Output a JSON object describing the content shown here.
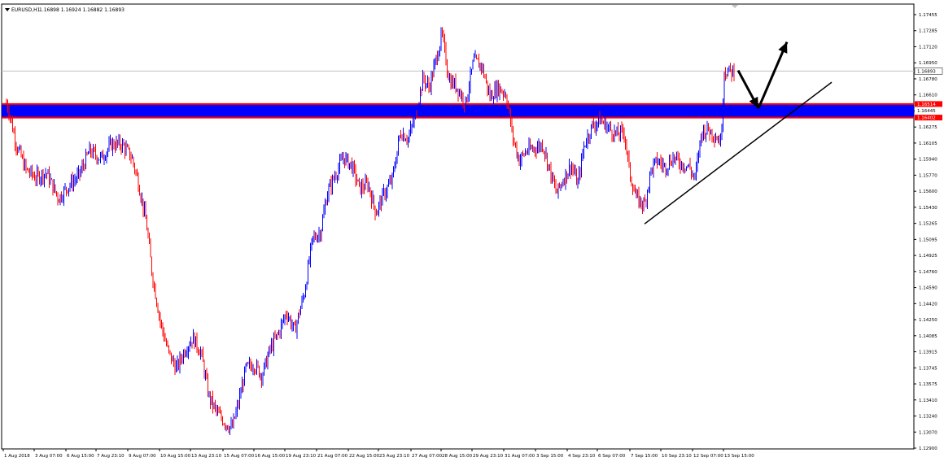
{
  "header": {
    "symbol": "EURUSD,H1",
    "ohlc": "1.16898 1.16924 1.16882 1.16893"
  },
  "colors": {
    "bull": "#0000ff",
    "bear": "#ff0000",
    "zone_fill": "#0000ff",
    "zone_border": "#ff0000",
    "annotation": "#000000",
    "price_tag_bg": "#ffffff",
    "level_tag_bg": "#ff0000"
  },
  "chart_data": {
    "type": "candlestick",
    "ylim": [
      1.12905,
      1.176
    ],
    "y_ticks": [
      "1.17455",
      "1.17285",
      "1.17120",
      "1.16950",
      "1.16780",
      "1.16610",
      "1.16445",
      "1.16275",
      "1.16105",
      "1.15940",
      "1.15770",
      "1.15600",
      "1.15430",
      "1.15265",
      "1.15095",
      "1.14925",
      "1.14760",
      "1.14590",
      "1.14420",
      "1.14250",
      "1.14085",
      "1.13915",
      "1.13745",
      "1.13575",
      "1.13410",
      "1.13240",
      "1.13070",
      "1.12900"
    ],
    "x_ticks": [
      "1 Aug 2018",
      "3 Aug 07:00",
      "6 Aug 15:00",
      "7 Aug 23:10",
      "9 Aug 07:00",
      "10 Aug 15:00",
      "13 Aug 23:10",
      "15 Aug 07:00",
      "16 Aug 15:00",
      "19 Aug 23:10",
      "21 Aug 07:00",
      "22 Aug 15:00",
      "23 Aug 23:10",
      "27 Aug 07:00",
      "28 Aug 15:00",
      "29 Aug 23:10",
      "31 Aug 07:00",
      "3 Sep 15:00",
      "4 Sep 23:10",
      "6 Sep 07:00",
      "7 Sep 15:00",
      "10 Sep 23:10",
      "12 Sep 07:00",
      "13 Sep 15:00"
    ],
    "current_price": "1.16893",
    "current_price_value": 1.16893,
    "zone": {
      "top": 1.16545,
      "bottom": 1.16402
    },
    "zone_labels": [
      "1.16514",
      "1.16445",
      "1.16402"
    ],
    "price_path": [
      {
        "x": 0,
        "y": 1.1672
      },
      {
        "x": 8,
        "y": 1.1651
      },
      {
        "x": 18,
        "y": 1.1612
      },
      {
        "x": 30,
        "y": 1.1585
      },
      {
        "x": 42,
        "y": 1.1577
      },
      {
        "x": 55,
        "y": 1.1582
      },
      {
        "x": 70,
        "y": 1.1555
      },
      {
        "x": 82,
        "y": 1.1568
      },
      {
        "x": 95,
        "y": 1.1579
      },
      {
        "x": 108,
        "y": 1.1605
      },
      {
        "x": 122,
        "y": 1.1597
      },
      {
        "x": 135,
        "y": 1.1612
      },
      {
        "x": 148,
        "y": 1.1612
      },
      {
        "x": 160,
        "y": 1.1598
      },
      {
        "x": 168,
        "y": 1.1572
      },
      {
        "x": 178,
        "y": 1.1528
      },
      {
        "x": 185,
        "y": 1.1475
      },
      {
        "x": 195,
        "y": 1.1425
      },
      {
        "x": 205,
        "y": 1.1392
      },
      {
        "x": 215,
        "y": 1.1375
      },
      {
        "x": 225,
        "y": 1.1395
      },
      {
        "x": 235,
        "y": 1.1408
      },
      {
        "x": 245,
        "y": 1.1392
      },
      {
        "x": 255,
        "y": 1.1345
      },
      {
        "x": 265,
        "y": 1.1328
      },
      {
        "x": 275,
        "y": 1.1318
      },
      {
        "x": 283,
        "y": 1.1312
      },
      {
        "x": 290,
        "y": 1.1335
      },
      {
        "x": 300,
        "y": 1.1375
      },
      {
        "x": 310,
        "y": 1.138
      },
      {
        "x": 320,
        "y": 1.1368
      },
      {
        "x": 330,
        "y": 1.1396
      },
      {
        "x": 340,
        "y": 1.1412
      },
      {
        "x": 350,
        "y": 1.1435
      },
      {
        "x": 360,
        "y": 1.1415
      },
      {
        "x": 372,
        "y": 1.1455
      },
      {
        "x": 382,
        "y": 1.1512
      },
      {
        "x": 392,
        "y": 1.152
      },
      {
        "x": 400,
        "y": 1.156
      },
      {
        "x": 410,
        "y": 1.158
      },
      {
        "x": 420,
        "y": 1.1598
      },
      {
        "x": 430,
        "y": 1.159
      },
      {
        "x": 440,
        "y": 1.1565
      },
      {
        "x": 450,
        "y": 1.157
      },
      {
        "x": 460,
        "y": 1.154
      },
      {
        "x": 470,
        "y": 1.156
      },
      {
        "x": 480,
        "y": 1.1575
      },
      {
        "x": 490,
        "y": 1.1625
      },
      {
        "x": 500,
        "y": 1.1618
      },
      {
        "x": 510,
        "y": 1.1648
      },
      {
        "x": 518,
        "y": 1.1682
      },
      {
        "x": 525,
        "y": 1.1672
      },
      {
        "x": 533,
        "y": 1.1698
      },
      {
        "x": 541,
        "y": 1.1728
      },
      {
        "x": 550,
        "y": 1.168
      },
      {
        "x": 560,
        "y": 1.1672
      },
      {
        "x": 570,
        "y": 1.1655
      },
      {
        "x": 580,
        "y": 1.17
      },
      {
        "x": 590,
        "y": 1.1695
      },
      {
        "x": 600,
        "y": 1.1662
      },
      {
        "x": 610,
        "y": 1.1672
      },
      {
        "x": 620,
        "y": 1.1665
      },
      {
        "x": 628,
        "y": 1.162
      },
      {
        "x": 636,
        "y": 1.1595
      },
      {
        "x": 645,
        "y": 1.1605
      },
      {
        "x": 655,
        "y": 1.1608
      },
      {
        "x": 665,
        "y": 1.1612
      },
      {
        "x": 675,
        "y": 1.158
      },
      {
        "x": 682,
        "y": 1.156
      },
      {
        "x": 690,
        "y": 1.1575
      },
      {
        "x": 700,
        "y": 1.159
      },
      {
        "x": 708,
        "y": 1.157
      },
      {
        "x": 716,
        "y": 1.1612
      },
      {
        "x": 725,
        "y": 1.163
      },
      {
        "x": 735,
        "y": 1.1638
      },
      {
        "x": 745,
        "y": 1.163
      },
      {
        "x": 755,
        "y": 1.1622
      },
      {
        "x": 765,
        "y": 1.1625
      },
      {
        "x": 772,
        "y": 1.158
      },
      {
        "x": 780,
        "y": 1.1555
      },
      {
        "x": 790,
        "y": 1.1548
      },
      {
        "x": 798,
        "y": 1.1585
      },
      {
        "x": 806,
        "y": 1.1595
      },
      {
        "x": 815,
        "y": 1.1588
      },
      {
        "x": 825,
        "y": 1.1598
      },
      {
        "x": 835,
        "y": 1.1592
      },
      {
        "x": 845,
        "y": 1.1588
      },
      {
        "x": 852,
        "y": 1.1575
      },
      {
        "x": 860,
        "y": 1.1625
      },
      {
        "x": 868,
        "y": 1.1628
      },
      {
        "x": 876,
        "y": 1.1622
      },
      {
        "x": 884,
        "y": 1.1615
      },
      {
        "x": 888,
        "y": 1.169
      },
      {
        "x": 895,
        "y": 1.1688
      },
      {
        "x": 901,
        "y": 1.169
      }
    ],
    "trendline": [
      {
        "x": 790,
        "y": 1.1528
      },
      {
        "x": 1020,
        "y": 1.16775
      }
    ],
    "annotation_arrow": [
      {
        "x": 905,
        "y": 1.169
      },
      {
        "x": 930,
        "y": 1.165
      },
      {
        "x": 965,
        "y": 1.172
      }
    ]
  }
}
